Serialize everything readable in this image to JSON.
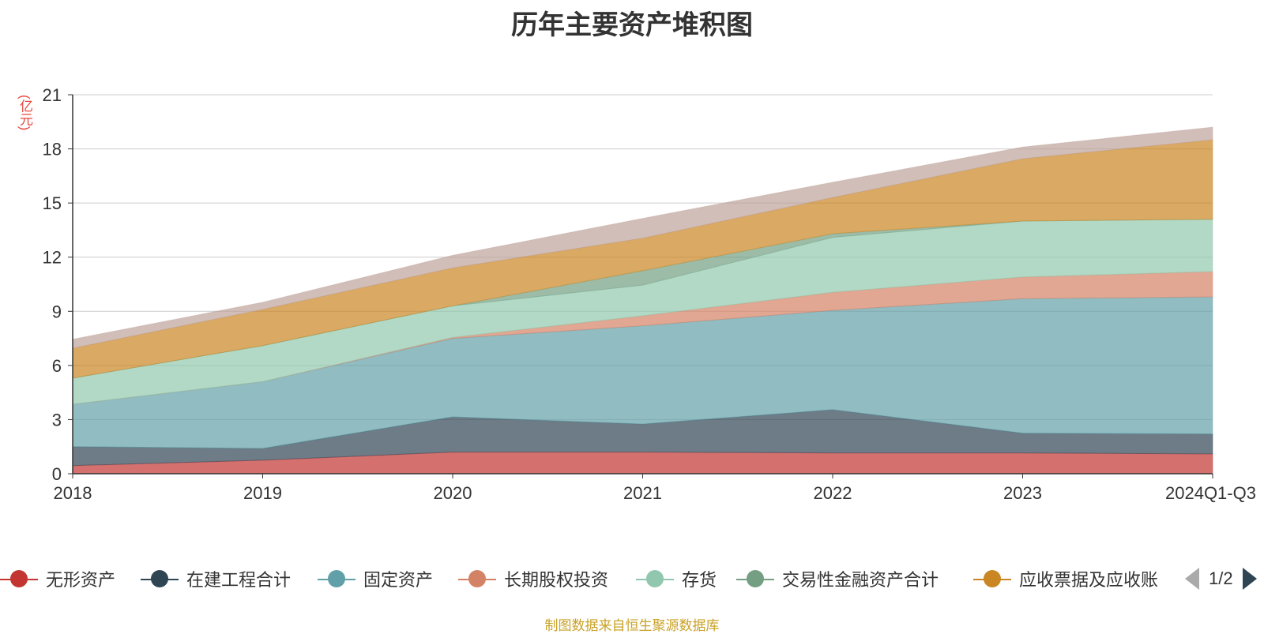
{
  "title": "历年主要资产堆积图",
  "unit_label": "(亿元)",
  "footer": "制图数据来自恒生聚源数据库",
  "legend_page": "1/2",
  "chart_data": {
    "type": "area",
    "stacked": true,
    "categories": [
      "2018",
      "2019",
      "2020",
      "2021",
      "2022",
      "2023",
      "2024Q1-Q3"
    ],
    "ylim": [
      0,
      21
    ],
    "yticks": [
      0,
      3,
      6,
      9,
      12,
      15,
      18,
      21
    ],
    "grid": true,
    "legend_position": "bottom",
    "series": [
      {
        "name": "无形资产",
        "color": "#c23531",
        "values": [
          0.45,
          0.75,
          1.2,
          1.2,
          1.15,
          1.15,
          1.1
        ]
      },
      {
        "name": "在建工程合计",
        "color": "#2f4554",
        "values": [
          1.05,
          0.65,
          1.95,
          1.55,
          2.4,
          1.1,
          1.1
        ]
      },
      {
        "name": "固定资产",
        "color": "#61a0a8",
        "values": [
          2.35,
          3.7,
          4.35,
          5.45,
          5.5,
          7.45,
          7.6
        ]
      },
      {
        "name": "长期股权投资",
        "color": "#d48265",
        "values": [
          0.0,
          0.0,
          0.05,
          0.55,
          1.0,
          1.2,
          1.4
        ]
      },
      {
        "name": "存货",
        "color": "#91c7ae",
        "values": [
          1.45,
          2.0,
          1.75,
          1.7,
          3.05,
          3.1,
          2.9
        ]
      },
      {
        "name": "交易性金融资产合计",
        "color": "#749f83",
        "values": [
          0.0,
          0.0,
          0.0,
          0.8,
          0.2,
          0.0,
          0.0
        ]
      },
      {
        "name": "应收票据及应收账",
        "color": "#ca8622",
        "values": [
          1.65,
          2.0,
          2.1,
          1.8,
          2.0,
          3.45,
          4.4
        ]
      },
      {
        "color": "#bda29a",
        "values": [
          0.5,
          0.4,
          0.7,
          1.1,
          0.85,
          0.65,
          0.7
        ]
      }
    ]
  }
}
